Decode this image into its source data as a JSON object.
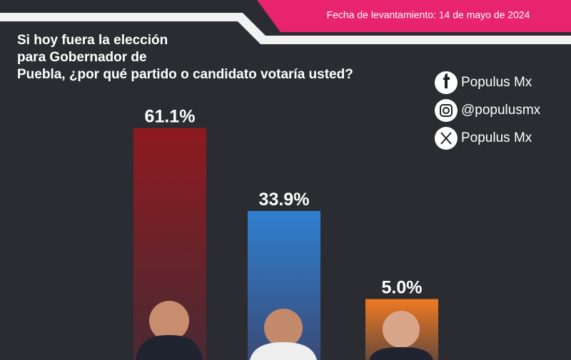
{
  "chart_data": {
    "type": "bar",
    "title": "Si hoy fuera la elección para Gobernador de Puebla, ¿por qué partido o candidato votaría usted?",
    "subtitle": "Fecha de levantamiento: 14 de mayo de 2024",
    "social": [
      "Populus Mx",
      "@populusmx",
      "Populus Mx"
    ],
    "categories": [
      null,
      null,
      null
    ],
    "values": [
      61.1,
      33.9,
      5.0
    ],
    "value_labels": [
      "61.1%",
      "33.9%",
      "5.0%"
    ],
    "colors": [
      "#8e1a1f",
      "#2f7fd0",
      "#ef7a22"
    ],
    "ylim": [
      -15,
      65
    ]
  }
}
